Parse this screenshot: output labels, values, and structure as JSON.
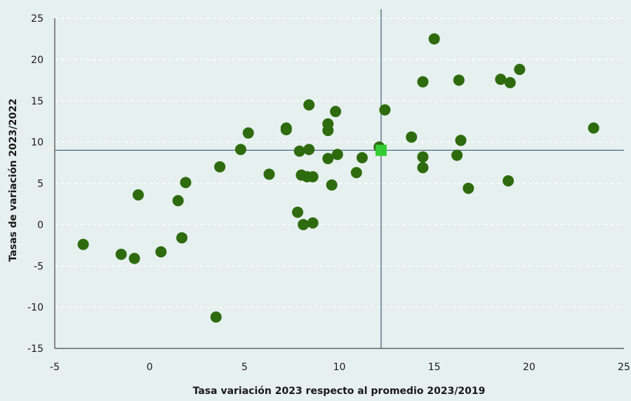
{
  "colors": {
    "background": "#e6f0ee",
    "grid": "#ffffff",
    "reference_lines": "#4a6a82",
    "axis": "#222222",
    "points": "#2e6b0f",
    "highlight": "#33cc33"
  },
  "chart_data": {
    "type": "scatter",
    "xlabel": "Tasa variación 2023 respecto al promedio 2023/2019",
    "ylabel": "Tasas de variación 2023/2022",
    "xlim": [
      -5,
      25
    ],
    "ylim": [
      -15,
      25
    ],
    "xticks": [
      -5,
      0,
      5,
      10,
      15,
      20,
      25
    ],
    "yticks": [
      -15,
      -10,
      -5,
      0,
      5,
      10,
      15,
      20,
      25
    ],
    "grid": "horizontal dashed",
    "reference_lines": {
      "x": 12.2,
      "y": 9.0
    },
    "highlight_point": {
      "x": 12.2,
      "y": 9.0,
      "marker": "square"
    },
    "points": [
      {
        "x": -3.5,
        "y": -2.4
      },
      {
        "x": -1.5,
        "y": -3.6
      },
      {
        "x": -0.8,
        "y": -4.1
      },
      {
        "x": -0.6,
        "y": 3.6
      },
      {
        "x": 0.6,
        "y": -3.3
      },
      {
        "x": 1.5,
        "y": 2.9
      },
      {
        "x": 1.7,
        "y": -1.6
      },
      {
        "x": 1.9,
        "y": 5.1
      },
      {
        "x": 3.5,
        "y": -11.2
      },
      {
        "x": 3.7,
        "y": 7.0
      },
      {
        "x": 4.8,
        "y": 9.1
      },
      {
        "x": 5.2,
        "y": 11.1
      },
      {
        "x": 6.3,
        "y": 6.1
      },
      {
        "x": 7.2,
        "y": 11.7
      },
      {
        "x": 7.2,
        "y": 11.5
      },
      {
        "x": 7.8,
        "y": 1.5
      },
      {
        "x": 7.9,
        "y": 8.9
      },
      {
        "x": 8.0,
        "y": 6.0
      },
      {
        "x": 8.1,
        "y": 0.0
      },
      {
        "x": 8.3,
        "y": 5.8
      },
      {
        "x": 8.4,
        "y": 9.1
      },
      {
        "x": 8.4,
        "y": 14.5
      },
      {
        "x": 8.6,
        "y": 5.8
      },
      {
        "x": 8.6,
        "y": 0.2
      },
      {
        "x": 9.4,
        "y": 12.2
      },
      {
        "x": 9.4,
        "y": 11.4
      },
      {
        "x": 9.4,
        "y": 8.0
      },
      {
        "x": 9.6,
        "y": 4.8
      },
      {
        "x": 9.8,
        "y": 13.7
      },
      {
        "x": 9.9,
        "y": 8.5
      },
      {
        "x": 10.9,
        "y": 6.3
      },
      {
        "x": 11.2,
        "y": 8.1
      },
      {
        "x": 12.1,
        "y": 9.4
      },
      {
        "x": 12.4,
        "y": 13.9
      },
      {
        "x": 13.8,
        "y": 10.6
      },
      {
        "x": 14.4,
        "y": 17.3
      },
      {
        "x": 14.4,
        "y": 8.2
      },
      {
        "x": 14.4,
        "y": 6.9
      },
      {
        "x": 15.0,
        "y": 22.5
      },
      {
        "x": 16.2,
        "y": 8.4
      },
      {
        "x": 16.3,
        "y": 17.5
      },
      {
        "x": 16.4,
        "y": 10.2
      },
      {
        "x": 16.8,
        "y": 4.4
      },
      {
        "x": 18.5,
        "y": 17.6
      },
      {
        "x": 18.9,
        "y": 5.3
      },
      {
        "x": 19.0,
        "y": 17.2
      },
      {
        "x": 19.5,
        "y": 18.8
      },
      {
        "x": 23.4,
        "y": 11.7
      }
    ]
  }
}
